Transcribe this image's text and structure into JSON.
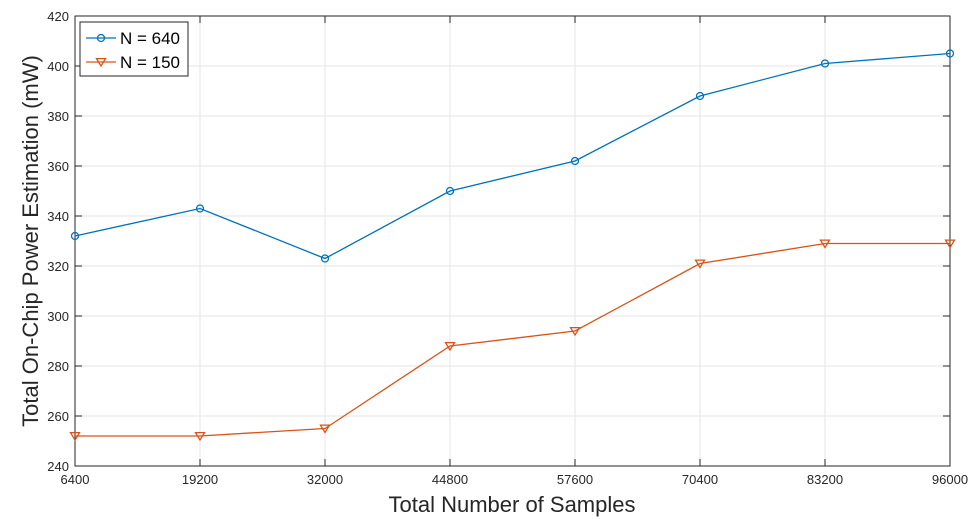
{
  "chart_data": {
    "type": "line",
    "title": "",
    "xlabel": "Total Number of Samples",
    "ylabel": "Total On-Chip Power Estimation (mW)",
    "x": [
      6400,
      19200,
      32000,
      44800,
      57600,
      70400,
      83200,
      96000
    ],
    "x_tick_labels": [
      "6400",
      "19200",
      "32000",
      "44800",
      "57600",
      "70400",
      "83200",
      "96000"
    ],
    "xlim": [
      6400,
      96000
    ],
    "ylim": [
      240,
      420
    ],
    "y_ticks": [
      240,
      260,
      280,
      300,
      320,
      340,
      360,
      380,
      400,
      420
    ],
    "grid": true,
    "legend_position": "top-left",
    "series": [
      {
        "name": "N = 640",
        "color": "#0072BD",
        "marker": "circle",
        "values": [
          332,
          343,
          323,
          350,
          362,
          388,
          401,
          405
        ]
      },
      {
        "name": "N = 150",
        "color": "#D95319",
        "marker": "triangle-down",
        "values": [
          252,
          252,
          255,
          288,
          294,
          321,
          329,
          329
        ]
      }
    ]
  }
}
